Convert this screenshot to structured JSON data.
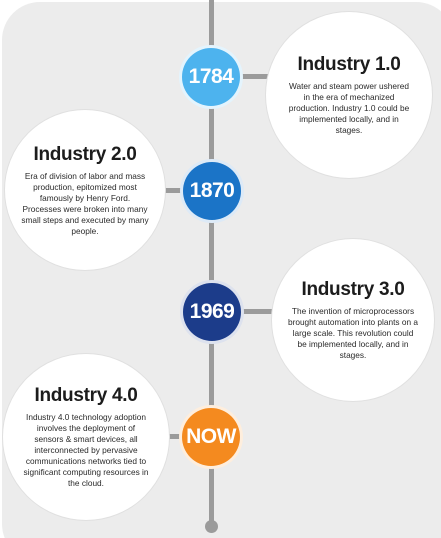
{
  "timeline": {
    "events": [
      {
        "year": "1784",
        "title": "Industry 1.0",
        "description": "Water and steam power ushered in the era of mechanized production. Industry 1.0 could be implemented locally, and in stages.",
        "color": "#4db3ee"
      },
      {
        "year": "1870",
        "title": "Industry 2.0",
        "description": "Era of division of labor and mass production, epitomized most famously by Henry Ford. Processes were broken into many small steps and executed by many people.",
        "color": "#1b74c7"
      },
      {
        "year": "1969",
        "title": "Industry 3.0",
        "description": "The invention of microprocessors brought automation into plants on a large scale. This revolution could be implemented locally, and in stages.",
        "color": "#1c3c8a"
      },
      {
        "year": "NOW",
        "title": "Industry 4.0",
        "description": "Industry 4.0 technology adoption involves the deployment of sensors & smart devices, all interconnected by pervasive communications networks tied to significant computing resources in the cloud.",
        "color": "#f48a1f"
      }
    ]
  }
}
